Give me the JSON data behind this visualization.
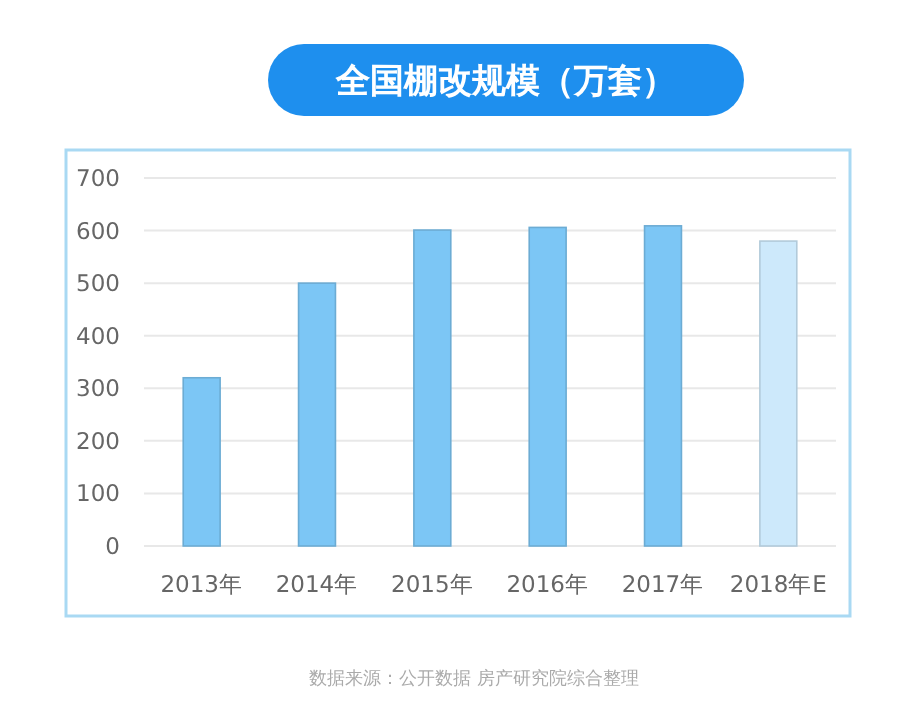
{
  "chart_data": {
    "type": "bar",
    "title": "全国棚改规模（万套）",
    "categories": [
      "2013年",
      "2014年",
      "2015年",
      "2016年",
      "2017年",
      "2018年E"
    ],
    "values": [
      320,
      500,
      601,
      606,
      609,
      580
    ],
    "colors": [
      "#7cc6f5",
      "#7cc6f5",
      "#7cc6f5",
      "#7cc6f5",
      "#7cc6f5",
      "#cde9fb"
    ],
    "ylim": [
      0,
      700
    ],
    "yticks": [
      0,
      100,
      200,
      300,
      400,
      500,
      600,
      700
    ],
    "grid": "y",
    "annotations": [
      "数据来源：公开数据 房产研究院综合整理"
    ]
  }
}
